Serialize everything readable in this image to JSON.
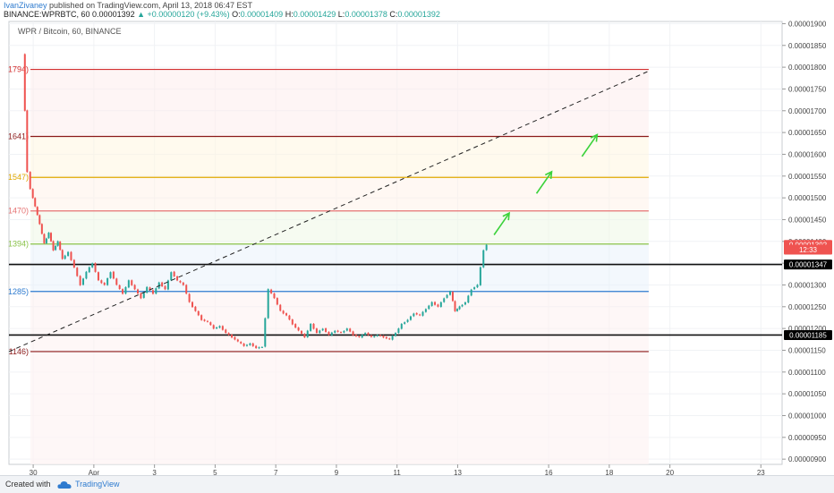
{
  "header": {
    "author": "IvanZivaney",
    "published": "published on TradingView.com, April 13, 2018 06:47 EST",
    "symbol": "BINANCE:WPRBTC, 60",
    "last": "0.00001392",
    "change": "▲ +0.00000120 (+9.43%)",
    "o_label": "O:",
    "o_val": "0.00001409",
    "h_label": "H:",
    "h_val": "0.00001429",
    "l_label": "L:",
    "l_val": "0.00001378",
    "c_label": "C:",
    "c_val": "0.00001392"
  },
  "footer": {
    "created": "Created with",
    "brand": "TradingView"
  },
  "chart_data": {
    "type": "candlestick",
    "title": "WPR / Bitcoin, 60, BINANCE",
    "y_range": [
      8.88e-06,
      1.905e-05
    ],
    "y_ticks": [
      "0.00001900",
      "0.00001850",
      "0.00001800",
      "0.00001750",
      "0.00001700",
      "0.00001650",
      "0.00001600",
      "0.00001550",
      "0.00001500",
      "0.00001450",
      "0.00001400",
      "0.00001350",
      "0.00001300",
      "0.00001250",
      "0.00001200",
      "0.00001150",
      "0.00001100",
      "0.00001050",
      "0.00001000",
      "0.00000950",
      "0.00000900"
    ],
    "x_ticks": [
      {
        "label": "30",
        "day": 1
      },
      {
        "label": "Apr",
        "day": 3
      },
      {
        "label": "3",
        "day": 5
      },
      {
        "label": "5",
        "day": 7
      },
      {
        "label": "7",
        "day": 9
      },
      {
        "label": "9",
        "day": 11
      },
      {
        "label": "11",
        "day": 13
      },
      {
        "label": "13",
        "day": 15
      },
      {
        "label": "16",
        "day": 18
      },
      {
        "label": "18",
        "day": 20
      },
      {
        "label": "20",
        "day": 22
      },
      {
        "label": "23",
        "day": 25
      }
    ],
    "x_range_days": [
      0.2,
      25.7
    ],
    "price_labels": [
      {
        "text": "0.00001392",
        "price": 1.392e-05,
        "color": "#ef5350"
      },
      {
        "text": "12:33",
        "price": 1.381e-05,
        "color": "#ef5350"
      },
      {
        "text": "0.00001347",
        "price": 1.347e-05,
        "color": "#000000"
      },
      {
        "text": "0.00001185",
        "price": 1.185e-05,
        "color": "#000000"
      }
    ],
    "fib_levels": [
      {
        "label": "1794)",
        "price": 1.795e-05,
        "color": "#d32f2f"
      },
      {
        "label": "1641)",
        "price": 1.641e-05,
        "color": "#8b1a1a"
      },
      {
        "label": "1547)",
        "price": 1.547e-05,
        "color": "#e0a800"
      },
      {
        "label": "1470)",
        "price": 1.47e-05,
        "color": "#e57373"
      },
      {
        "label": "1394)",
        "price": 1.394e-05,
        "color": "#8bc34a"
      },
      {
        "label": "1285)",
        "price": 1.285e-05,
        "color": "#2e7bcf"
      },
      {
        "label": "1146)",
        "price": 1.147e-05,
        "color": "#8b1a1a"
      }
    ],
    "support_lines": [
      1.347e-05,
      1.185e-05
    ],
    "trendline": {
      "from": {
        "day": 0.2,
        "price": 1.147e-05
      },
      "to": {
        "day": 21.3,
        "price": 1.791e-05
      }
    },
    "fib_end_day": 21.3,
    "arrows": [
      {
        "from": {
          "day": 16.2,
          "price": 1.415e-05
        },
        "to": {
          "day": 16.7,
          "price": 1.465e-05
        }
      },
      {
        "from": {
          "day": 17.6,
          "price": 1.51e-05
        },
        "to": {
          "day": 18.1,
          "price": 1.56e-05
        }
      },
      {
        "from": {
          "day": 19.1,
          "price": 1.595e-05
        },
        "to": {
          "day": 19.6,
          "price": 1.645e-05
        }
      }
    ],
    "series": [
      [
        0.7,
        1830
      ],
      [
        0.75,
        1700
      ],
      [
        0.85,
        1560
      ],
      [
        0.95,
        1520
      ],
      [
        1.1,
        1480
      ],
      [
        1.25,
        1440
      ],
      [
        1.4,
        1395
      ],
      [
        1.55,
        1420
      ],
      [
        1.7,
        1380
      ],
      [
        1.85,
        1400
      ],
      [
        2.0,
        1360
      ],
      [
        2.2,
        1375
      ],
      [
        2.4,
        1340
      ],
      [
        2.6,
        1300
      ],
      [
        2.8,
        1330
      ],
      [
        3.0,
        1350
      ],
      [
        3.2,
        1310
      ],
      [
        3.4,
        1300
      ],
      [
        3.6,
        1330
      ],
      [
        3.8,
        1300
      ],
      [
        4.0,
        1280
      ],
      [
        4.2,
        1310
      ],
      [
        4.4,
        1290
      ],
      [
        4.6,
        1270
      ],
      [
        4.8,
        1295
      ],
      [
        5.0,
        1280
      ],
      [
        5.2,
        1305
      ],
      [
        5.4,
        1290
      ],
      [
        5.6,
        1330
      ],
      [
        5.8,
        1310
      ],
      [
        6.0,
        1300
      ],
      [
        6.2,
        1260
      ],
      [
        6.4,
        1240
      ],
      [
        6.6,
        1220
      ],
      [
        6.8,
        1215
      ],
      [
        7.0,
        1200
      ],
      [
        7.2,
        1205
      ],
      [
        7.4,
        1190
      ],
      [
        7.6,
        1180
      ],
      [
        7.8,
        1170
      ],
      [
        8.0,
        1160
      ],
      [
        8.2,
        1165
      ],
      [
        8.4,
        1155
      ],
      [
        8.6,
        1158
      ],
      [
        8.8,
        1290
      ],
      [
        9.0,
        1270
      ],
      [
        9.2,
        1240
      ],
      [
        9.4,
        1230
      ],
      [
        9.6,
        1210
      ],
      [
        9.8,
        1195
      ],
      [
        10.0,
        1180
      ],
      [
        10.2,
        1210
      ],
      [
        10.4,
        1190
      ],
      [
        10.6,
        1200
      ],
      [
        10.8,
        1185
      ],
      [
        11.0,
        1195
      ],
      [
        11.2,
        1190
      ],
      [
        11.4,
        1200
      ],
      [
        11.6,
        1185
      ],
      [
        11.8,
        1180
      ],
      [
        12.0,
        1190
      ],
      [
        12.2,
        1180
      ],
      [
        12.4,
        1185
      ],
      [
        12.6,
        1180
      ],
      [
        12.8,
        1175
      ],
      [
        13.0,
        1190
      ],
      [
        13.2,
        1210
      ],
      [
        13.4,
        1220
      ],
      [
        13.6,
        1235
      ],
      [
        13.8,
        1230
      ],
      [
        14.0,
        1245
      ],
      [
        14.2,
        1260
      ],
      [
        14.4,
        1250
      ],
      [
        14.6,
        1270
      ],
      [
        14.8,
        1285
      ],
      [
        14.95,
        1240
      ],
      [
        15.1,
        1250
      ],
      [
        15.3,
        1260
      ],
      [
        15.5,
        1290
      ],
      [
        15.7,
        1300
      ],
      [
        15.9,
        1380
      ],
      [
        16.0,
        1392
      ]
    ],
    "series_scale": 1e-08
  }
}
